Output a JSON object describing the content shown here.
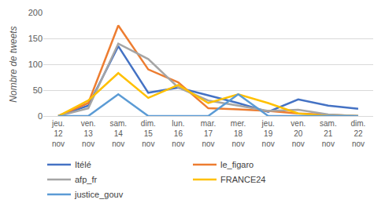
{
  "chart_data": {
    "type": "line",
    "y_label": "Nombre de tweets",
    "categories": [
      "jeu. 12 nov",
      "ven. 13 nov",
      "sam. 14 nov",
      "dim. 15 nov",
      "lun. 16 nov",
      "mar. 17 nov",
      "mer. 18 nov",
      "jeu. 19 nov",
      "ven. 20 nov",
      "sam. 21 nov",
      "dim. 22 nov"
    ],
    "series": [
      {
        "name": "Itélé",
        "color": "#4472c4",
        "values": [
          0,
          20,
          135,
          45,
          55,
          40,
          25,
          8,
          32,
          20,
          14
        ]
      },
      {
        "name": "le_figaro",
        "color": "#ed7d31",
        "values": [
          0,
          25,
          175,
          90,
          65,
          15,
          13,
          10,
          5,
          2,
          0
        ]
      },
      {
        "name": "afp_fr",
        "color": "#a5a5a5",
        "values": [
          0,
          15,
          140,
          110,
          55,
          30,
          20,
          10,
          12,
          3,
          0
        ]
      },
      {
        "name": "FRANCE24",
        "color": "#ffc000",
        "values": [
          0,
          30,
          83,
          35,
          60,
          25,
          42,
          25,
          5,
          0,
          0
        ]
      },
      {
        "name": "justice_gouv",
        "color": "#5b9bd5",
        "values": [
          0,
          0,
          42,
          0,
          0,
          0,
          42,
          0,
          0,
          0,
          0
        ]
      }
    ],
    "ylim": [
      0,
      200
    ],
    "yticks": [
      0,
      50,
      100,
      150,
      200
    ],
    "grid": true,
    "legend": "bottom"
  }
}
